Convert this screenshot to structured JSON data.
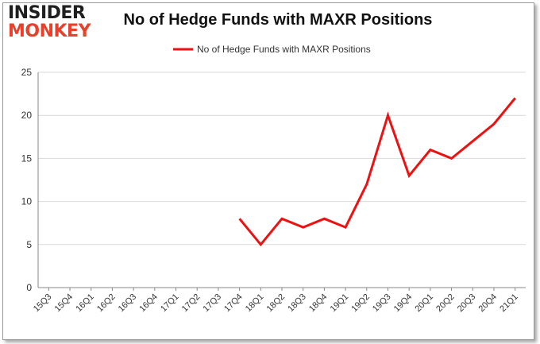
{
  "logo": {
    "line1": "INSIDER",
    "line2": "MONKEY"
  },
  "colors": {
    "series": "#ee1111",
    "grid": "#d9d9d9",
    "axis": "#888888",
    "text": "#333333",
    "logo_accent": "#e8402a"
  },
  "chart_data": {
    "type": "line",
    "title": "No of Hedge Funds with MAXR Positions",
    "xlabel": "",
    "ylabel": "",
    "ylim": [
      0,
      25
    ],
    "yticks": [
      0,
      5,
      10,
      15,
      20,
      25
    ],
    "grid": true,
    "legend_position": "top-center",
    "categories": [
      "15Q3",
      "15Q4",
      "16Q1",
      "16Q2",
      "16Q3",
      "16Q4",
      "17Q1",
      "17Q2",
      "17Q3",
      "17Q4",
      "18Q1",
      "18Q2",
      "18Q3",
      "18Q4",
      "19Q1",
      "19Q2",
      "19Q3",
      "19Q4",
      "20Q1",
      "20Q2",
      "20Q3",
      "20Q4",
      "21Q1"
    ],
    "series": [
      {
        "name": "No of Hedge Funds with MAXR Positions",
        "values": [
          null,
          null,
          null,
          null,
          null,
          null,
          null,
          null,
          null,
          8,
          5,
          8,
          7,
          8,
          7,
          12,
          20,
          13,
          16,
          15,
          17,
          19,
          22
        ]
      }
    ]
  }
}
